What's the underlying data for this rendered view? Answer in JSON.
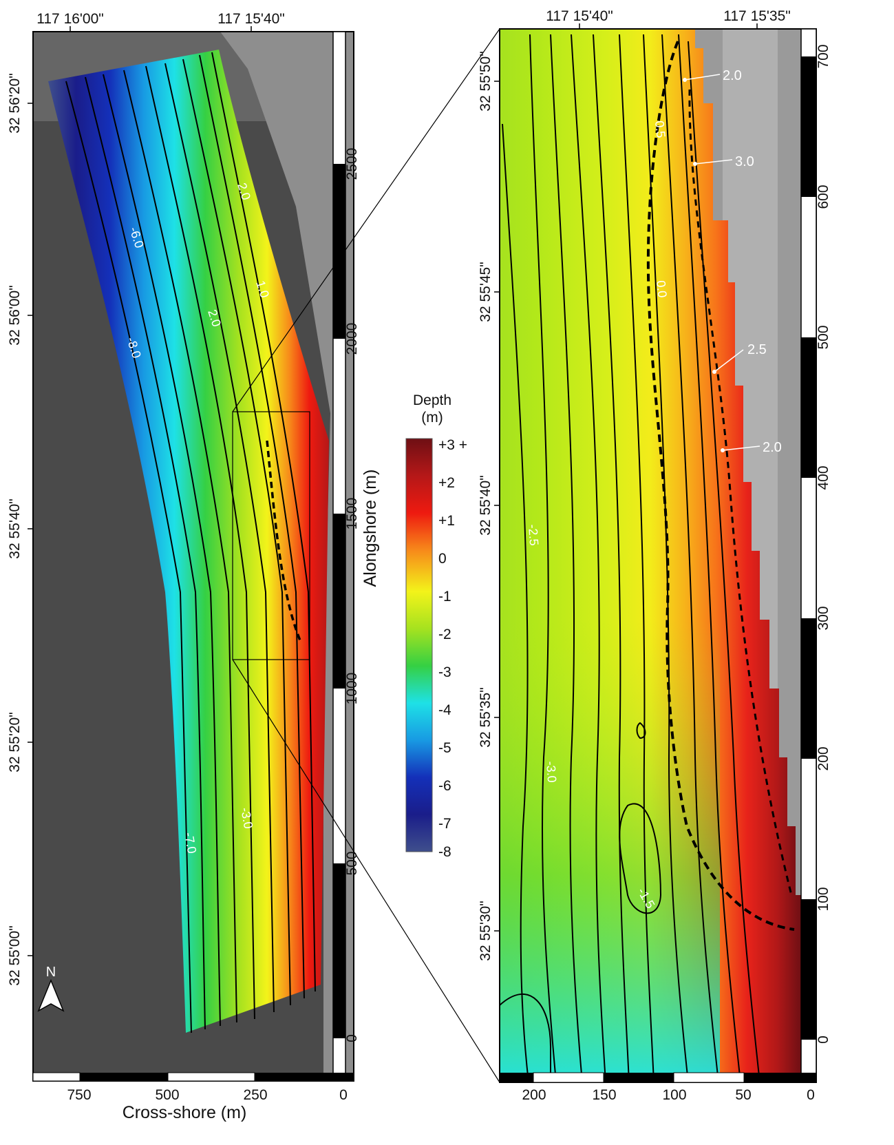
{
  "left_map": {
    "top_lon_labels": [
      "117 16'00\"",
      "117 15'40\""
    ],
    "lat_labels": [
      "32 56'20\"",
      "32 56'00\"",
      "32 55'40\"",
      "32 55'20\"",
      "32 55'00\""
    ],
    "alongshore_ticks": [
      "2500",
      "2000",
      "1500",
      "1000",
      "500",
      "0"
    ],
    "alongshore_label": "Alongshore (m)",
    "crossshore_ticks": [
      "750",
      "500",
      "250",
      "0"
    ],
    "crossshore_label": "Cross-shore (m)",
    "north_label": "N",
    "contour_labels": [
      "2.0",
      "-6.0",
      "1.0",
      "2.0",
      "-8.0",
      "-3.0",
      "-7.0"
    ]
  },
  "right_map": {
    "top_lon_labels": [
      "117 15'40\"",
      "117 15'35\""
    ],
    "lat_labels": [
      "32 55'50\"",
      "32 55'45\"",
      "32 55'40\"",
      "32 55'35\"",
      "32 55'30\""
    ],
    "alongshore_ticks": [
      "700",
      "600",
      "500",
      "400",
      "300",
      "200",
      "100",
      "0"
    ],
    "crossshore_ticks": [
      "200",
      "150",
      "100",
      "50",
      "0"
    ],
    "contour_labels": [
      "0.5",
      "0.0",
      "-2.5",
      "-3.0",
      "-1.5"
    ],
    "callouts": [
      "2.0",
      "3.0",
      "2.5",
      "2.0"
    ]
  },
  "colorbar": {
    "title_line1": "Depth",
    "title_line2": "(m)",
    "ticks": [
      "+3 +",
      "+2",
      "+1",
      "0",
      "-1",
      "-2",
      "-3",
      "-4",
      "-5",
      "-6",
      "-7",
      "-8"
    ],
    "stops": [
      "#6e0f14",
      "#b51818",
      "#ee1a10",
      "#f7891a",
      "#f3f31a",
      "#a6e21f",
      "#35d043",
      "#1ee1e6",
      "#189ae3",
      "#1430b9",
      "#1a1d8a",
      "#3f4f8c"
    ]
  }
}
